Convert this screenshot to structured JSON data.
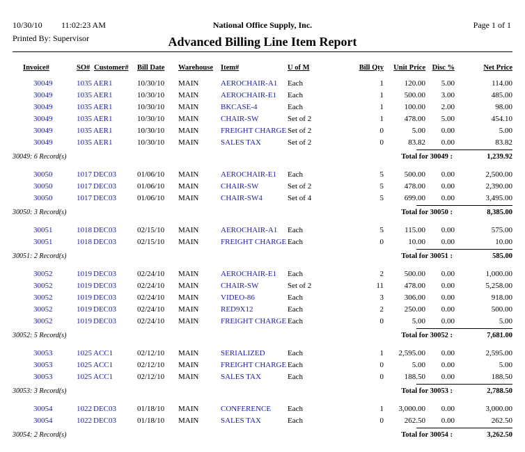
{
  "header": {
    "date": "10/30/10",
    "time": "11:02:23 AM",
    "company": "National Office Supply, Inc.",
    "page": "Page 1 of 1",
    "printed_by": "Printed By: Supervisor",
    "title": "Advanced Billing Line Item Report"
  },
  "columns": [
    "Invoice#",
    "SO#",
    "Customer#",
    "Bill Date",
    "Warehouse",
    "Item#",
    "U of M",
    "Bill Qty",
    "Unit Price",
    "Disc %",
    "Net Price"
  ],
  "groups": [
    {
      "rows": [
        [
          "30049",
          "1035",
          "AER1",
          "10/30/10",
          "MAIN",
          "AEROCHAIR-A1",
          "Each",
          "1",
          "120.00",
          "5.00",
          "114.00"
        ],
        [
          "30049",
          "1035",
          "AER1",
          "10/30/10",
          "MAIN",
          "AEROCHAIR-E1",
          "Each",
          "1",
          "500.00",
          "3.00",
          "485.00"
        ],
        [
          "30049",
          "1035",
          "AER1",
          "10/30/10",
          "MAIN",
          "BKCASE-4",
          "Each",
          "1",
          "100.00",
          "2.00",
          "98.00"
        ],
        [
          "30049",
          "1035",
          "AER1",
          "10/30/10",
          "MAIN",
          "CHAIR-SW",
          "Set of 2",
          "1",
          "478.00",
          "5.00",
          "454.10"
        ],
        [
          "30049",
          "1035",
          "AER1",
          "10/30/10",
          "MAIN",
          "FREIGHT CHARGE",
          "Set of 2",
          "0",
          "5.00",
          "0.00",
          "5.00"
        ],
        [
          "30049",
          "1035",
          "AER1",
          "10/30/10",
          "MAIN",
          "SALES TAX",
          "Set of 2",
          "0",
          "83.82",
          "0.00",
          "83.82"
        ]
      ],
      "summary": "30049: 6 Record(s)",
      "total_label": "Total for 30049 :",
      "total": "1,239.92"
    },
    {
      "rows": [
        [
          "30050",
          "1017",
          "DEC03",
          "01/06/10",
          "MAIN",
          "AEROCHAIR-E1",
          "Each",
          "5",
          "500.00",
          "0.00",
          "2,500.00"
        ],
        [
          "30050",
          "1017",
          "DEC03",
          "01/06/10",
          "MAIN",
          "CHAIR-SW",
          "Set of 2",
          "5",
          "478.00",
          "0.00",
          "2,390.00"
        ],
        [
          "30050",
          "1017",
          "DEC03",
          "01/06/10",
          "MAIN",
          "CHAIR-SW4",
          "Set of 4",
          "5",
          "699.00",
          "0.00",
          "3,495.00"
        ]
      ],
      "summary": "30050: 3 Record(s)",
      "total_label": "Total for 30050 :",
      "total": "8,385.00"
    },
    {
      "rows": [
        [
          "30051",
          "1018",
          "DEC03",
          "02/15/10",
          "MAIN",
          "AEROCHAIR-A1",
          "Each",
          "5",
          "115.00",
          "0.00",
          "575.00"
        ],
        [
          "30051",
          "1018",
          "DEC03",
          "02/15/10",
          "MAIN",
          "FREIGHT CHARGE",
          "Each",
          "0",
          "10.00",
          "0.00",
          "10.00"
        ]
      ],
      "summary": "30051: 2 Record(s)",
      "total_label": "Total for 30051 :",
      "total": "585.00"
    },
    {
      "rows": [
        [
          "30052",
          "1019",
          "DEC03",
          "02/24/10",
          "MAIN",
          "AEROCHAIR-E1",
          "Each",
          "2",
          "500.00",
          "0.00",
          "1,000.00"
        ],
        [
          "30052",
          "1019",
          "DEC03",
          "02/24/10",
          "MAIN",
          "CHAIR-SW",
          "Set of 2",
          "11",
          "478.00",
          "0.00",
          "5,258.00"
        ],
        [
          "30052",
          "1019",
          "DEC03",
          "02/24/10",
          "MAIN",
          "VIDEO-86",
          "Each",
          "3",
          "306.00",
          "0.00",
          "918.00"
        ],
        [
          "30052",
          "1019",
          "DEC03",
          "02/24/10",
          "MAIN",
          "RED9X12",
          "Each",
          "2",
          "250.00",
          "0.00",
          "500.00"
        ],
        [
          "30052",
          "1019",
          "DEC03",
          "02/24/10",
          "MAIN",
          "FREIGHT CHARGE",
          "Each",
          "0",
          "5.00",
          "0.00",
          "5.00"
        ]
      ],
      "summary": "30052: 5 Record(s)",
      "total_label": "Total for 30052 :",
      "total": "7,681.00"
    },
    {
      "rows": [
        [
          "30053",
          "1025",
          "ACC1",
          "02/12/10",
          "MAIN",
          "SERIALIZED",
          "Each",
          "1",
          "2,595.00",
          "0.00",
          "2,595.00"
        ],
        [
          "30053",
          "1025",
          "ACC1",
          "02/12/10",
          "MAIN",
          "FREIGHT CHARGE",
          "Each",
          "0",
          "5.00",
          "0.00",
          "5.00"
        ],
        [
          "30053",
          "1025",
          "ACC1",
          "02/12/10",
          "MAIN",
          "SALES TAX",
          "Each",
          "0",
          "188.50",
          "0.00",
          "188.50"
        ]
      ],
      "summary": "30053: 3 Record(s)",
      "total_label": "Total for 30053 :",
      "total": "2,788.50"
    },
    {
      "rows": [
        [
          "30054",
          "1022",
          "DEC03",
          "01/18/10",
          "MAIN",
          "CONFERENCE",
          "Each",
          "1",
          "3,000.00",
          "0.00",
          "3,000.00"
        ],
        [
          "30054",
          "1022",
          "DEC03",
          "01/18/10",
          "MAIN",
          "SALES TAX",
          "Each",
          "0",
          "262.50",
          "0.00",
          "262.50"
        ]
      ],
      "summary": "30054: 2 Record(s)",
      "total_label": "Total for 30054 :",
      "total": "3,262.50"
    }
  ]
}
